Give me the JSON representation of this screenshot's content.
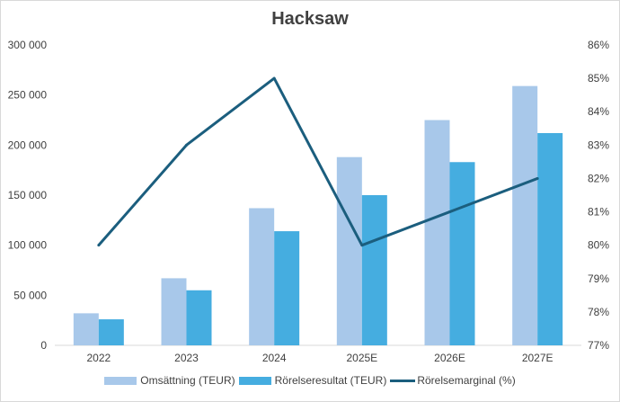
{
  "chart_data": {
    "type": "bar",
    "title": "Hacksaw",
    "categories": [
      "2022",
      "2023",
      "2024",
      "2025E",
      "2026E",
      "2027E"
    ],
    "series": [
      {
        "name": "Omsättning (TEUR)",
        "type": "bar",
        "axis": "left",
        "color": "#a8c8ea",
        "values": [
          32000,
          67000,
          137000,
          188000,
          225000,
          259000
        ]
      },
      {
        "name": "Rörelseresultat (TEUR)",
        "type": "bar",
        "axis": "left",
        "color": "#45ade0",
        "values": [
          26000,
          55000,
          114000,
          150000,
          183000,
          212000
        ]
      },
      {
        "name": "Rörelsemarginal (%)",
        "type": "line",
        "axis": "right",
        "color": "#1b5e7e",
        "values": [
          80,
          83,
          85,
          80,
          81,
          82
        ]
      }
    ],
    "y_left": {
      "min": 0,
      "max": 300000,
      "step": 50000,
      "tick_labels": [
        "0",
        "50 000",
        "100 000",
        "150 000",
        "200 000",
        "250 000",
        "300 000"
      ]
    },
    "y_right": {
      "min": 77,
      "max": 86,
      "step": 1,
      "tick_labels": [
        "77%",
        "78%",
        "79%",
        "80%",
        "81%",
        "82%",
        "83%",
        "84%",
        "85%",
        "86%"
      ]
    },
    "grid": false,
    "legend_position": "bottom"
  },
  "legend": {
    "items": [
      {
        "label": "Omsättning (TEUR)",
        "color": "#a8c8ea",
        "kind": "bar"
      },
      {
        "label": "Rörelseresultat (TEUR)",
        "color": "#45ade0",
        "kind": "bar"
      },
      {
        "label": "Rörelsemarginal (%)",
        "color": "#1b5e7e",
        "kind": "line"
      }
    ]
  }
}
